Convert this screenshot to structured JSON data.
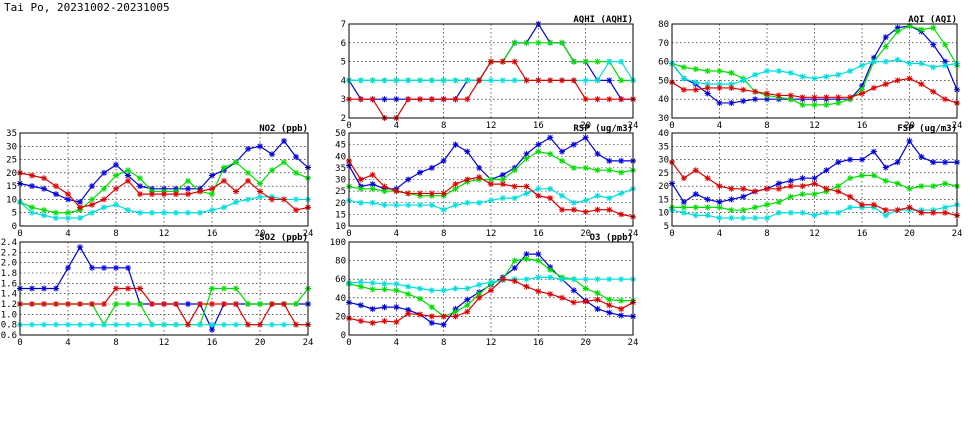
{
  "page": {
    "title": "Tai Po, 20231002-20231005"
  },
  "series_colors": [
    "#0000dd",
    "#00dd00",
    "#00dddd",
    "#dd0000"
  ],
  "chart_data": [
    {
      "id": "aqhi",
      "type": "line",
      "title": "AQHI (AQHI)",
      "xlim": [
        0,
        24
      ],
      "xticks": [
        0,
        4,
        8,
        12,
        16,
        20,
        24
      ],
      "ylim": [
        2,
        7
      ],
      "yticks": [
        2,
        3,
        4,
        5,
        6,
        7
      ],
      "series": [
        {
          "values": [
            4,
            3,
            3,
            3,
            3,
            3,
            3,
            3,
            3,
            3,
            4,
            4,
            5,
            5,
            6,
            6,
            7,
            6,
            6,
            5,
            5,
            4,
            4,
            3,
            3
          ]
        },
        {
          "values": [
            4,
            4,
            4,
            4,
            4,
            4,
            4,
            4,
            4,
            4,
            4,
            4,
            5,
            5,
            6,
            6,
            6,
            6,
            6,
            5,
            5,
            5,
            5,
            4,
            4
          ]
        },
        {
          "values": [
            4,
            4,
            4,
            4,
            4,
            4,
            4,
            4,
            4,
            4,
            4,
            4,
            4,
            4,
            4,
            4,
            4,
            4,
            4,
            4,
            4,
            4,
            5,
            5,
            4
          ]
        },
        {
          "values": [
            3,
            3,
            3,
            2,
            2,
            3,
            3,
            3,
            3,
            3,
            3,
            4,
            5,
            5,
            5,
            4,
            4,
            4,
            4,
            4,
            3,
            3,
            3,
            3,
            3
          ]
        }
      ]
    },
    {
      "id": "aqi",
      "type": "line",
      "title": "AQI (AQI)",
      "xlim": [
        0,
        24
      ],
      "xticks": [
        0,
        4,
        8,
        12,
        16,
        20,
        24
      ],
      "ylim": [
        30,
        80
      ],
      "yticks": [
        30,
        40,
        50,
        60,
        70,
        80
      ],
      "series": [
        {
          "values": [
            59,
            51,
            48,
            43,
            38,
            38,
            39,
            40,
            40,
            40,
            40,
            40,
            40,
            40,
            40,
            40,
            47,
            62,
            73,
            78,
            79,
            76,
            69,
            60,
            45
          ]
        },
        {
          "values": [
            59,
            57,
            56,
            55,
            55,
            54,
            51,
            44,
            42,
            41,
            40,
            37,
            37,
            37,
            38,
            40,
            45,
            60,
            68,
            76,
            79,
            77,
            78,
            69,
            58
          ]
        },
        {
          "values": [
            59,
            51,
            49,
            48,
            48,
            48,
            50,
            53,
            55,
            55,
            54,
            52,
            51,
            52,
            53,
            55,
            58,
            60,
            60,
            61,
            59,
            59,
            57,
            58,
            59
          ]
        },
        {
          "values": [
            49,
            45,
            45,
            46,
            46,
            46,
            45,
            44,
            43,
            42,
            42,
            41,
            41,
            41,
            41,
            41,
            43,
            46,
            48,
            50,
            51,
            48,
            44,
            40,
            38
          ]
        }
      ]
    },
    {
      "id": "no2",
      "type": "line",
      "title": "NO2 (ppb)",
      "xlim": [
        0,
        24
      ],
      "xticks": [
        0,
        4,
        8,
        12,
        16,
        20,
        24
      ],
      "ylim": [
        0,
        35
      ],
      "yticks": [
        0,
        5,
        10,
        15,
        20,
        25,
        30,
        35
      ],
      "series": [
        {
          "values": [
            16,
            15,
            14,
            12,
            10,
            9,
            15,
            20,
            23,
            19,
            15,
            14,
            14,
            14,
            14,
            14,
            19,
            21,
            24,
            29,
            30,
            27,
            32,
            26,
            22
          ]
        },
        {
          "values": [
            9,
            7,
            6,
            5,
            5,
            6,
            10,
            14,
            19,
            21,
            18,
            13,
            13,
            13,
            17,
            13,
            12,
            22,
            24,
            20,
            16,
            21,
            24,
            20,
            18
          ]
        },
        {
          "values": [
            9,
            5,
            4,
            3,
            3,
            3,
            5,
            7,
            8,
            6,
            5,
            5,
            5,
            5,
            5,
            5,
            6,
            7,
            9,
            10,
            11,
            11,
            10,
            10,
            10
          ]
        },
        {
          "values": [
            20,
            19,
            18,
            15,
            12,
            7,
            8,
            10,
            14,
            17,
            12,
            12,
            12,
            12,
            12,
            13,
            14,
            17,
            13,
            17,
            13,
            10,
            10,
            6,
            7
          ]
        }
      ]
    },
    {
      "id": "rsp",
      "type": "line",
      "title": "RSP (ug/m3)",
      "xlim": [
        0,
        24
      ],
      "xticks": [
        0,
        4,
        8,
        12,
        16,
        20,
        24
      ],
      "ylim": [
        10,
        50
      ],
      "yticks": [
        10,
        15,
        20,
        25,
        30,
        35,
        40,
        45,
        50
      ],
      "series": [
        {
          "values": [
            36,
            27,
            28,
            26,
            26,
            30,
            33,
            35,
            38,
            45,
            42,
            35,
            30,
            32,
            35,
            41,
            45,
            48,
            42,
            45,
            48,
            41,
            38,
            38,
            38
          ]
        },
        {
          "values": [
            27,
            26,
            26,
            25,
            25,
            24,
            23,
            23,
            23,
            26,
            29,
            30,
            30,
            30,
            34,
            39,
            42,
            41,
            38,
            35,
            35,
            34,
            34,
            33,
            34
          ]
        },
        {
          "values": [
            21,
            20,
            20,
            19,
            19,
            19,
            19,
            19,
            17,
            19,
            20,
            20,
            21,
            22,
            22,
            24,
            26,
            26,
            23,
            20,
            21,
            23,
            22,
            24,
            26
          ]
        },
        {
          "values": [
            38,
            30,
            32,
            27,
            25,
            24,
            24,
            24,
            24,
            28,
            30,
            31,
            28,
            28,
            27,
            27,
            23,
            22,
            17,
            17,
            16,
            17,
            17,
            15,
            14
          ]
        }
      ]
    },
    {
      "id": "fsp",
      "type": "line",
      "title": "FSP (ug/m3)",
      "xlim": [
        0,
        24
      ],
      "xticks": [
        0,
        4,
        8,
        12,
        16,
        20,
        24
      ],
      "ylim": [
        5,
        40
      ],
      "yticks": [
        5,
        10,
        15,
        20,
        25,
        30,
        35,
        40
      ],
      "series": [
        {
          "values": [
            21,
            14,
            17,
            15,
            14,
            15,
            16,
            18,
            19,
            21,
            22,
            23,
            23,
            26,
            29,
            30,
            30,
            33,
            27,
            29,
            37,
            31,
            29,
            29,
            29
          ]
        },
        {
          "values": [
            12,
            12,
            12,
            12,
            12,
            11,
            11,
            12,
            13,
            14,
            16,
            17,
            17,
            18,
            20,
            23,
            24,
            24,
            22,
            21,
            19,
            20,
            20,
            21,
            20
          ]
        },
        {
          "values": [
            11,
            10,
            9,
            9,
            8,
            8,
            8,
            8,
            8,
            10,
            10,
            10,
            9,
            10,
            10,
            12,
            12,
            12,
            9,
            11,
            11,
            11,
            11,
            12,
            13
          ]
        },
        {
          "values": [
            29,
            23,
            26,
            23,
            20,
            19,
            19,
            18,
            19,
            19,
            20,
            20,
            21,
            19,
            18,
            16,
            13,
            13,
            11,
            11,
            12,
            10,
            10,
            10,
            9
          ]
        }
      ]
    },
    {
      "id": "so2",
      "type": "line",
      "title": "SO2 (ppb)",
      "xlim": [
        0,
        24
      ],
      "xticks": [
        0,
        4,
        8,
        12,
        16,
        20,
        24
      ],
      "ylim": [
        0.6,
        2.4
      ],
      "yticks": [
        0.6,
        0.8,
        1.0,
        1.2,
        1.4,
        1.6,
        1.8,
        2.0,
        2.2,
        2.4
      ],
      "series": [
        {
          "values": [
            1.5,
            1.5,
            1.5,
            1.5,
            1.9,
            2.3,
            1.9,
            1.9,
            1.9,
            1.9,
            1.2,
            1.2,
            1.2,
            1.2,
            1.2,
            1.2,
            0.7,
            1.2,
            1.2,
            1.2,
            1.2,
            1.2,
            1.2,
            1.2,
            1.2
          ]
        },
        {
          "values": [
            1.2,
            1.2,
            1.2,
            1.2,
            1.2,
            1.2,
            1.2,
            0.8,
            1.2,
            1.2,
            1.2,
            0.8,
            0.8,
            0.8,
            0.8,
            0.8,
            1.5,
            1.5,
            1.5,
            1.2,
            1.2,
            1.2,
            1.2,
            1.2,
            1.5
          ]
        },
        {
          "values": [
            0.8,
            0.8,
            0.8,
            0.8,
            0.8,
            0.8,
            0.8,
            0.8,
            0.8,
            0.8,
            0.8,
            0.8,
            0.8,
            0.8,
            0.8,
            0.8,
            0.8,
            0.8,
            0.8,
            0.8,
            0.8,
            0.8,
            0.8,
            0.8,
            0.8
          ]
        },
        {
          "values": [
            1.2,
            1.2,
            1.2,
            1.2,
            1.2,
            1.2,
            1.2,
            1.2,
            1.5,
            1.5,
            1.5,
            1.2,
            1.2,
            1.2,
            0.8,
            1.2,
            1.2,
            1.2,
            1.2,
            0.8,
            0.8,
            1.2,
            1.2,
            0.8,
            0.8
          ]
        }
      ]
    },
    {
      "id": "o3",
      "type": "line",
      "title": "O3 (ppb)",
      "xlim": [
        0,
        24
      ],
      "xticks": [
        0,
        4,
        8,
        12,
        16,
        20,
        24
      ],
      "ylim": [
        0,
        100
      ],
      "yticks": [
        0,
        20,
        40,
        60,
        80,
        100
      ],
      "series": [
        {
          "values": [
            35,
            32,
            28,
            30,
            30,
            27,
            22,
            13,
            11,
            28,
            38,
            46,
            54,
            62,
            72,
            87,
            87,
            73,
            60,
            48,
            37,
            28,
            24,
            21,
            20
          ]
        },
        {
          "values": [
            55,
            52,
            49,
            49,
            48,
            44,
            39,
            30,
            20,
            25,
            32,
            44,
            55,
            60,
            80,
            82,
            80,
            70,
            62,
            60,
            50,
            45,
            38,
            37,
            37
          ]
        },
        {
          "values": [
            56,
            57,
            56,
            55,
            55,
            52,
            50,
            48,
            48,
            50,
            50,
            54,
            57,
            59,
            60,
            60,
            62,
            62,
            60,
            60,
            60,
            60,
            60,
            60,
            60
          ]
        },
        {
          "values": [
            18,
            15,
            13,
            15,
            14,
            23,
            22,
            20,
            20,
            20,
            25,
            40,
            48,
            60,
            58,
            52,
            47,
            44,
            40,
            35,
            36,
            38,
            32,
            28,
            35
          ]
        }
      ]
    }
  ]
}
